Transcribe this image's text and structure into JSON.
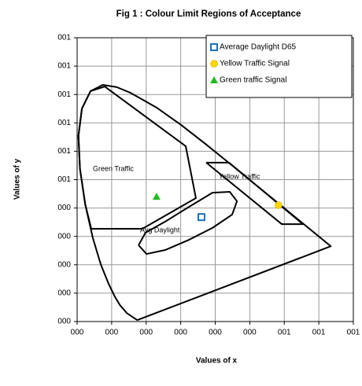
{
  "chart_data": {
    "type": "scatter",
    "title": "Fig 1 : Colour Limit Regions of Acceptance",
    "xlabel": "Values of x",
    "ylabel": "Values of y",
    "xlim": [
      0,
      0.8
    ],
    "ylim": [
      0,
      1.0
    ],
    "xticks": [
      {
        "value": 0,
        "label": "000"
      },
      {
        "value": 0.1,
        "label": "000"
      },
      {
        "value": 0.2,
        "label": "000"
      },
      {
        "value": 0.3,
        "label": "000"
      },
      {
        "value": 0.4,
        "label": "000"
      },
      {
        "value": 0.5,
        "label": "000"
      },
      {
        "value": 0.6,
        "label": "001"
      },
      {
        "value": 0.7,
        "label": "001"
      },
      {
        "value": 0.8,
        "label": "001"
      }
    ],
    "yticks": [
      {
        "value": 0,
        "label": "000"
      },
      {
        "value": 0.1,
        "label": "000"
      },
      {
        "value": 0.2,
        "label": "000"
      },
      {
        "value": 0.3,
        "label": "000"
      },
      {
        "value": 0.4,
        "label": "000"
      },
      {
        "value": 0.5,
        "label": "001"
      },
      {
        "value": 0.6,
        "label": "001"
      },
      {
        "value": 0.7,
        "label": "001"
      },
      {
        "value": 0.8,
        "label": "001"
      },
      {
        "value": 0.9,
        "label": "001"
      },
      {
        "value": 1.0,
        "label": "001"
      }
    ],
    "grid": true,
    "legend": "upper right",
    "annotations": [
      "Green Traffic",
      "Yellow Traffic",
      "Avg Daylight"
    ],
    "series": [
      {
        "name": "Average Daylight D65",
        "type": "scatter",
        "marker": "square",
        "color": "#1f6fb5",
        "x": [
          0.36
        ],
        "values": [
          0.368
        ]
      },
      {
        "name": "Yellow Traffic Signal",
        "type": "scatter",
        "marker": "circle",
        "color": "#ffd700",
        "x": [
          0.583
        ],
        "values": [
          0.41
        ]
      },
      {
        "name": "Green traffic Signal",
        "type": "scatter",
        "marker": "triangle",
        "color": "#22bb22",
        "x": [
          0.23
        ],
        "values": [
          0.44
        ]
      },
      {
        "type": "line",
        "color": "#000000",
        "x": [
          0.1741,
          0.144,
          0.1241,
          0.1096,
          0.0913,
          0.0687,
          0.0454,
          0.0235,
          0.0082,
          0.0039,
          0.0139,
          0.0389,
          0.0743,
          0.1142,
          0.1547,
          0.2296,
          0.3016,
          0.3731,
          0.4441,
          0.5125,
          0.5752,
          0.627,
          0.6915,
          0.7347,
          0.1741
        ],
        "values": [
          0.005,
          0.0297,
          0.0578,
          0.0868,
          0.1327,
          0.2007,
          0.295,
          0.4127,
          0.5384,
          0.6548,
          0.7502,
          0.812,
          0.8338,
          0.8262,
          0.8059,
          0.7543,
          0.6923,
          0.6245,
          0.5547,
          0.4866,
          0.4242,
          0.3725,
          0.3083,
          0.2653,
          0.005
        ]
      },
      {
        "type": "line",
        "color": "#000000",
        "x": [
          0.08,
          0.3145,
          0.344,
          0.189,
          0.041,
          0.0235,
          0.0082,
          0.0039,
          0.0139,
          0.0389,
          0.08
        ],
        "values": [
          0.828,
          0.618,
          0.435,
          0.327,
          0.327,
          0.4127,
          0.5384,
          0.6548,
          0.7502,
          0.812,
          0.828
        ]
      },
      {
        "type": "line",
        "color": "#000000",
        "x": [
          0.374,
          0.44,
          0.654,
          0.593,
          0.374
        ],
        "values": [
          0.56,
          0.56,
          0.343,
          0.343,
          0.56
        ]
      },
      {
        "type": "line",
        "color": "#000000",
        "x": [
          0.178,
          0.198,
          0.255,
          0.324,
          0.392,
          0.442,
          0.463,
          0.449,
          0.392,
          0.324,
          0.255,
          0.201,
          0.178
        ],
        "values": [
          0.269,
          0.313,
          0.352,
          0.404,
          0.454,
          0.457,
          0.424,
          0.377,
          0.33,
          0.288,
          0.252,
          0.238,
          0.269
        ]
      }
    ]
  }
}
